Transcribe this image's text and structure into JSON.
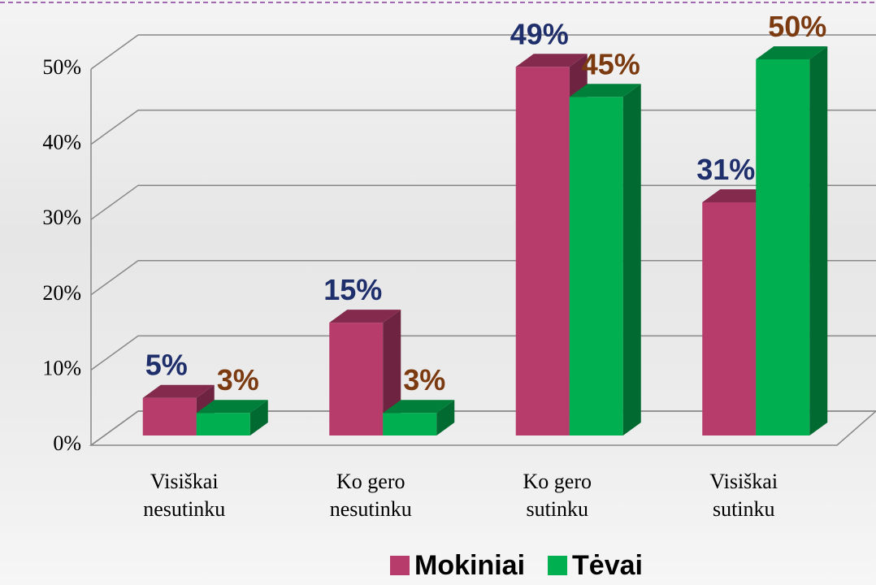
{
  "chart_data": {
    "type": "bar3d",
    "categories": [
      "Visiškai nesutinku",
      "Ko gero nesutinku",
      "Ko gero sutinku",
      "Visiškai sutinku"
    ],
    "series": [
      {
        "name": "Mokiniai",
        "color": "#b83c6b",
        "label_color": "#1f2f6b",
        "values": [
          5,
          15,
          49,
          31
        ],
        "value_labels": [
          "5%",
          "15%",
          "49%",
          "31%"
        ]
      },
      {
        "name": "Tėvai",
        "color": "#00b050",
        "label_color": "#7b3a10",
        "values": [
          3,
          3,
          45,
          50
        ],
        "value_labels": [
          "3%",
          "3%",
          "45%",
          "50%"
        ]
      }
    ],
    "ylim": [
      0,
      50
    ],
    "yticks": [
      {
        "value": 0,
        "label": "0%"
      },
      {
        "value": 10,
        "label": "10%"
      },
      {
        "value": 20,
        "label": "20%"
      },
      {
        "value": 30,
        "label": "30%"
      },
      {
        "value": 40,
        "label": "40%"
      },
      {
        "value": 50,
        "label": "50%"
      }
    ],
    "grid": true
  }
}
